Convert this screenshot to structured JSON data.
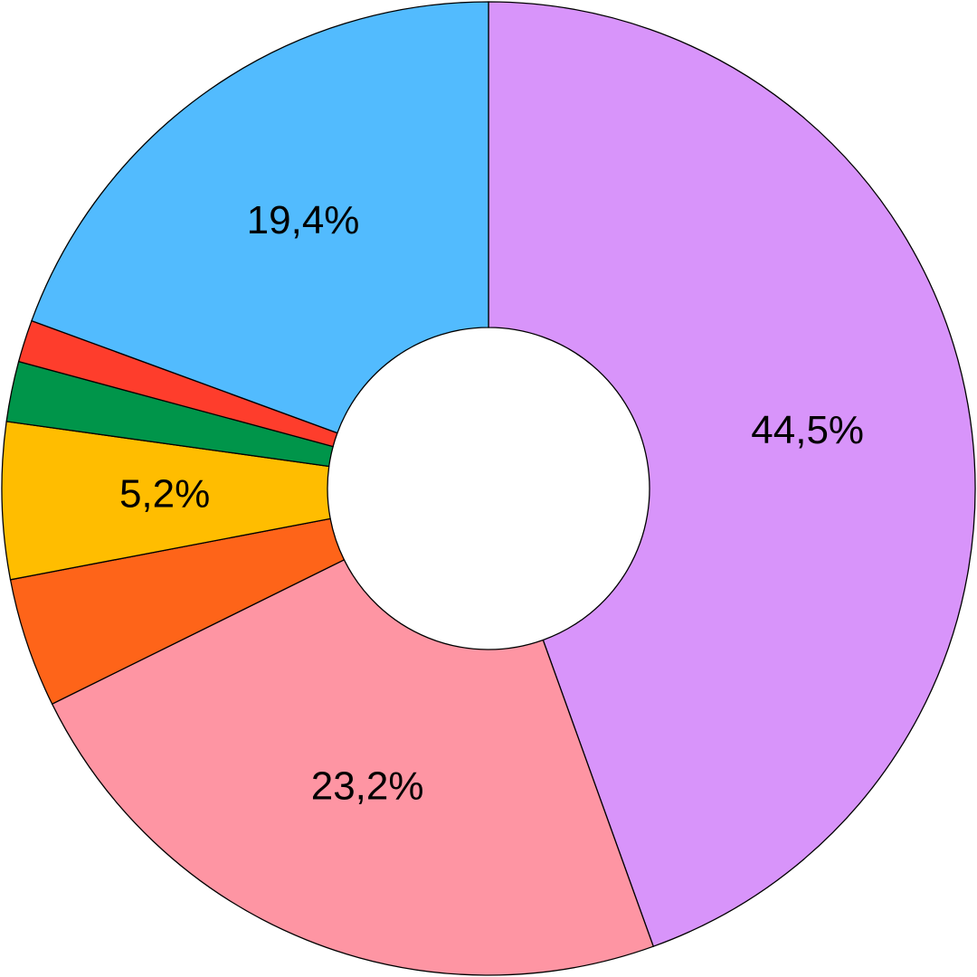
{
  "chart_data": {
    "type": "pie",
    "values": [
      44.5,
      23.2,
      4.3,
      5.2,
      2.0,
      1.4,
      19.4
    ],
    "value_labels": [
      "44,5%",
      "23,2%",
      null,
      "5,2%",
      null,
      null,
      "19,4%"
    ],
    "colors": [
      "#d894fa",
      "#fe95a3",
      "#fe6419",
      "#ffbd00",
      "#00954a",
      "#fe3d2c",
      "#52bbfe"
    ],
    "donut": true
  }
}
